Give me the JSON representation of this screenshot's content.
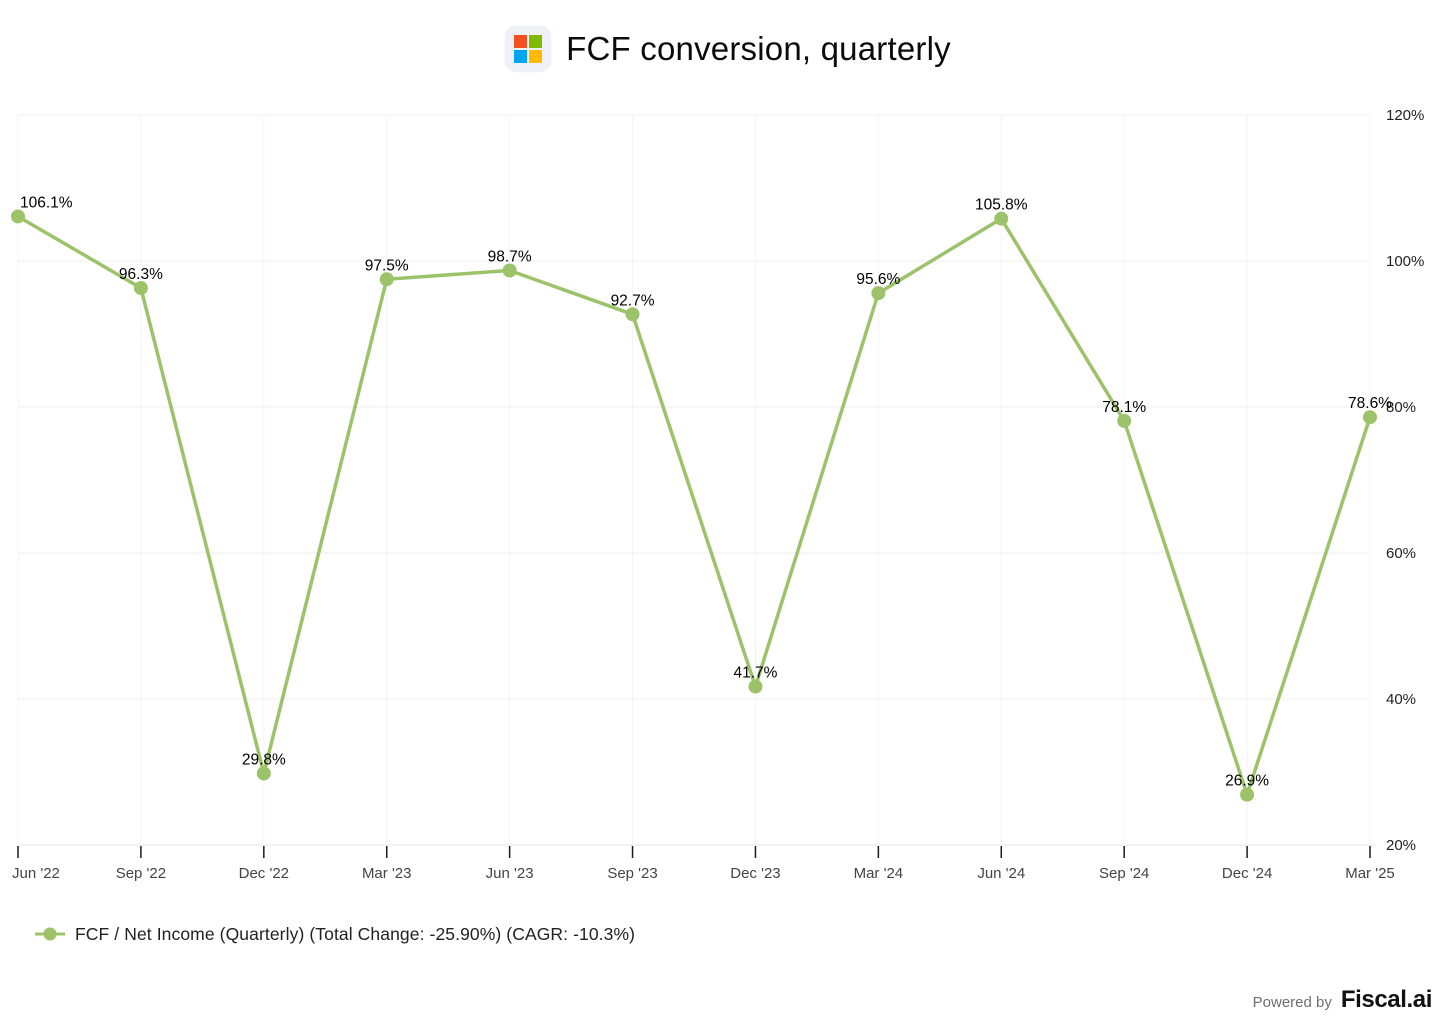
{
  "header": {
    "title": "FCF conversion, quarterly",
    "icon": {
      "name": "microsoft-logo",
      "background": "#eef1f6",
      "colors": {
        "top_left": "#f25022",
        "top_right": "#7fba00",
        "bottom_left": "#00a4ef",
        "bottom_right": "#ffb900"
      }
    }
  },
  "chart_data": {
    "type": "line",
    "title": "FCF conversion, quarterly",
    "categories": [
      "Jun '22",
      "Sep '22",
      "Dec '22",
      "Mar '23",
      "Jun '23",
      "Sep '23",
      "Dec '23",
      "Mar '24",
      "Jun '24",
      "Sep '24",
      "Dec '24",
      "Mar '25"
    ],
    "series": [
      {
        "name": "FCF / Net Income (Quarterly)",
        "values": [
          106.1,
          96.3,
          29.8,
          97.5,
          98.7,
          92.7,
          41.7,
          95.6,
          105.8,
          78.1,
          26.9,
          78.6
        ],
        "color": "#9cc36a"
      }
    ],
    "data_label_format": "{value}%",
    "ylim": [
      20,
      120
    ],
    "yticks": [
      20,
      40,
      60,
      80,
      100,
      120
    ],
    "ytick_format": "{value}%",
    "y_axis_side": "right",
    "grid": true,
    "legend_position": "bottom-left",
    "colors": {
      "grid_horizontal": "#efefef",
      "grid_vertical": "#f4f4f4",
      "axis_line": "#e6e6e6",
      "tick_mark": "#1a1a1a",
      "x_label": "#444444",
      "y_label": "#222222",
      "data_label": "#000000"
    }
  },
  "legend": {
    "marker_color": "#9cc36a",
    "label": "FCF / Net Income (Quarterly) (Total Change: -25.90%) (CAGR: -10.3%)"
  },
  "footer": {
    "powered_by": "Powered by",
    "brand": "Fiscal.ai"
  }
}
